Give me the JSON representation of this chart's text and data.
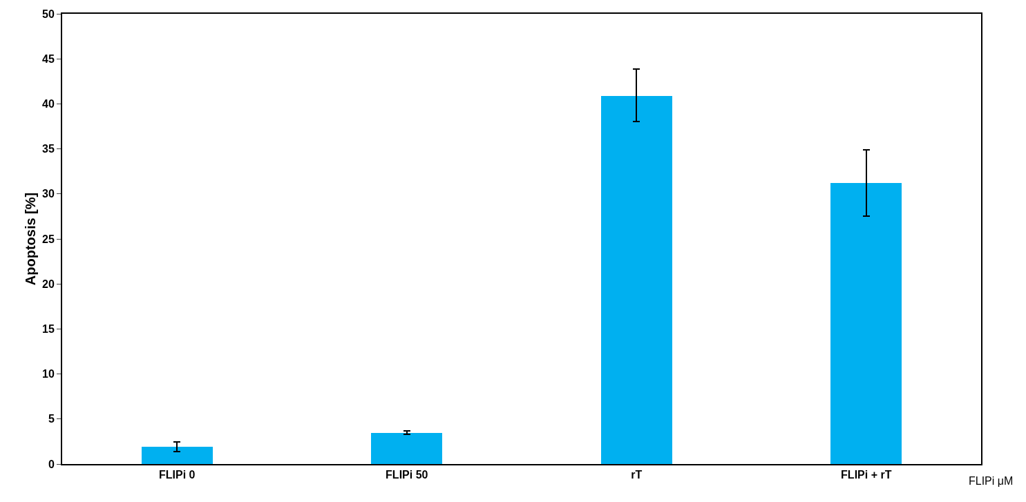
{
  "chart_data": {
    "type": "bar",
    "ylabel": "Apoptosis [%]",
    "categories": [
      "FLIPi 0",
      "FLIPi 50",
      "rT",
      "FLIPi + rT"
    ],
    "values": [
      1.9,
      3.45,
      40.9,
      31.2
    ],
    "errors": [
      [
        1.4,
        2.45
      ],
      [
        3.3,
        3.65
      ],
      [
        38.0,
        43.9
      ],
      [
        27.5,
        34.9
      ]
    ],
    "color": "#00b0f0",
    "ylim": [
      0,
      50
    ],
    "yticks": [
      0,
      5,
      10,
      15,
      20,
      25,
      30,
      35,
      40,
      45,
      50
    ],
    "legend": false,
    "annotations": [
      "FLIPi μM"
    ]
  }
}
